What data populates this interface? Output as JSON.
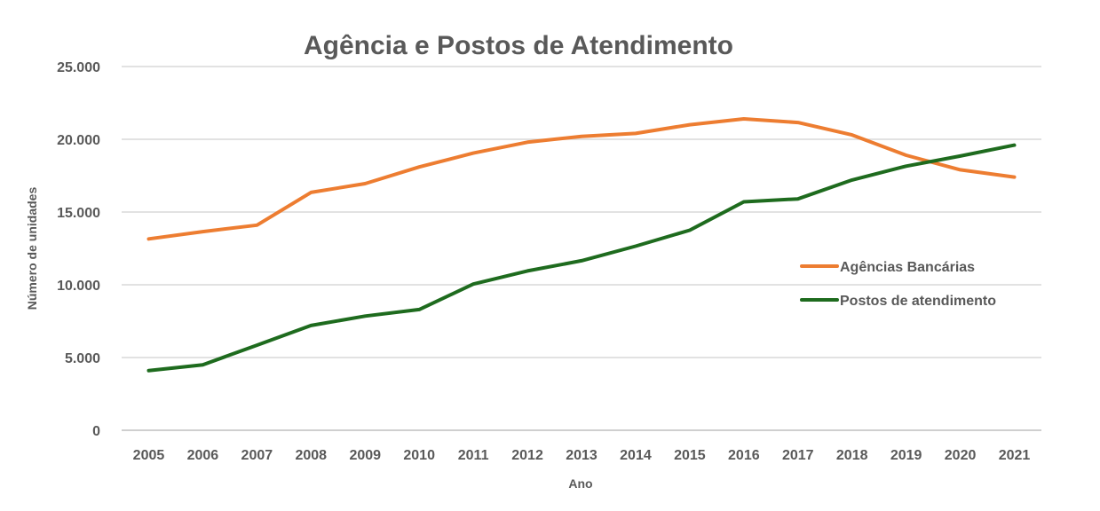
{
  "chart_data": {
    "type": "line",
    "title": "Agência e Postos de Atendimento",
    "xlabel": "Ano",
    "ylabel": "Número de unidades",
    "ylim": [
      0,
      25000
    ],
    "yticks": [
      0,
      5000,
      10000,
      15000,
      20000,
      25000
    ],
    "ytick_labels": [
      "0",
      "5.000",
      "10.000",
      "15.000",
      "20.000",
      "25.000"
    ],
    "grid": true,
    "legend_position": "right",
    "categories": [
      "2005",
      "2006",
      "2007",
      "2008",
      "2009",
      "2010",
      "2011",
      "2012",
      "2013",
      "2014",
      "2015",
      "2016",
      "2017",
      "2018",
      "2019",
      "2020",
      "2021"
    ],
    "series": [
      {
        "name": "Agências Bancárias",
        "color": "#ED7D31",
        "values": [
          13150,
          13650,
          14100,
          16350,
          16950,
          18100,
          19050,
          19800,
          20200,
          20400,
          21000,
          21400,
          21150,
          20300,
          18900,
          17900,
          17400
        ]
      },
      {
        "name": "Postos de atendimento",
        "color": "#1E6B1E",
        "values": [
          4100,
          4500,
          5850,
          7200,
          7850,
          8300,
          10050,
          10950,
          11650,
          12650,
          13750,
          15700,
          15900,
          17200,
          18150,
          18850,
          19600
        ]
      }
    ]
  }
}
